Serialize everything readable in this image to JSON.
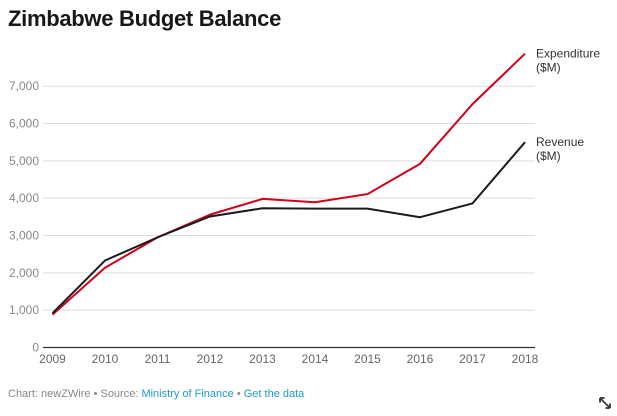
{
  "title": "Zimbabwe Budget Balance",
  "footer": {
    "prefix": "Chart: newZWire • Source: ",
    "source_link": "Ministry of Finance",
    "separator": " • ",
    "data_link": "Get the data"
  },
  "icons": {
    "expand": "expand-diagonal-icon"
  },
  "colors": {
    "expenditure": "#d0021b",
    "revenue": "#1a1a1a",
    "grid": "#dddddd",
    "axis": "#333333",
    "link": "#1f9bc9"
  },
  "chart_data": {
    "type": "line",
    "title": "Zimbabwe Budget Balance",
    "xlabel": "",
    "ylabel": "",
    "x": [
      "2009",
      "2010",
      "2011",
      "2012",
      "2013",
      "2014",
      "2015",
      "2016",
      "2017",
      "2018"
    ],
    "ylim": [
      0,
      7900
    ],
    "yticks": [
      0,
      1000,
      2000,
      3000,
      4000,
      5000,
      6000,
      7000
    ],
    "ytick_labels": [
      "0",
      "1,000",
      "2,000",
      "3,000",
      "4,000",
      "5,000",
      "6,000",
      "7,000"
    ],
    "grid": true,
    "legend": "inline labels at right end of lines",
    "series": [
      {
        "name": "Expenditure ($M)",
        "label_lines": [
          "Expenditure",
          "($M)"
        ],
        "color": "#d0021b",
        "values": [
          880,
          2135,
          2950,
          3560,
          3980,
          3890,
          4110,
          4920,
          6520,
          7870
        ]
      },
      {
        "name": "Revenue ($M)",
        "label_lines": [
          "Revenue",
          "($M)"
        ],
        "color": "#1a1a1a",
        "values": [
          920,
          2330,
          2950,
          3510,
          3730,
          3720,
          3720,
          3490,
          3860,
          5500
        ]
      }
    ]
  }
}
